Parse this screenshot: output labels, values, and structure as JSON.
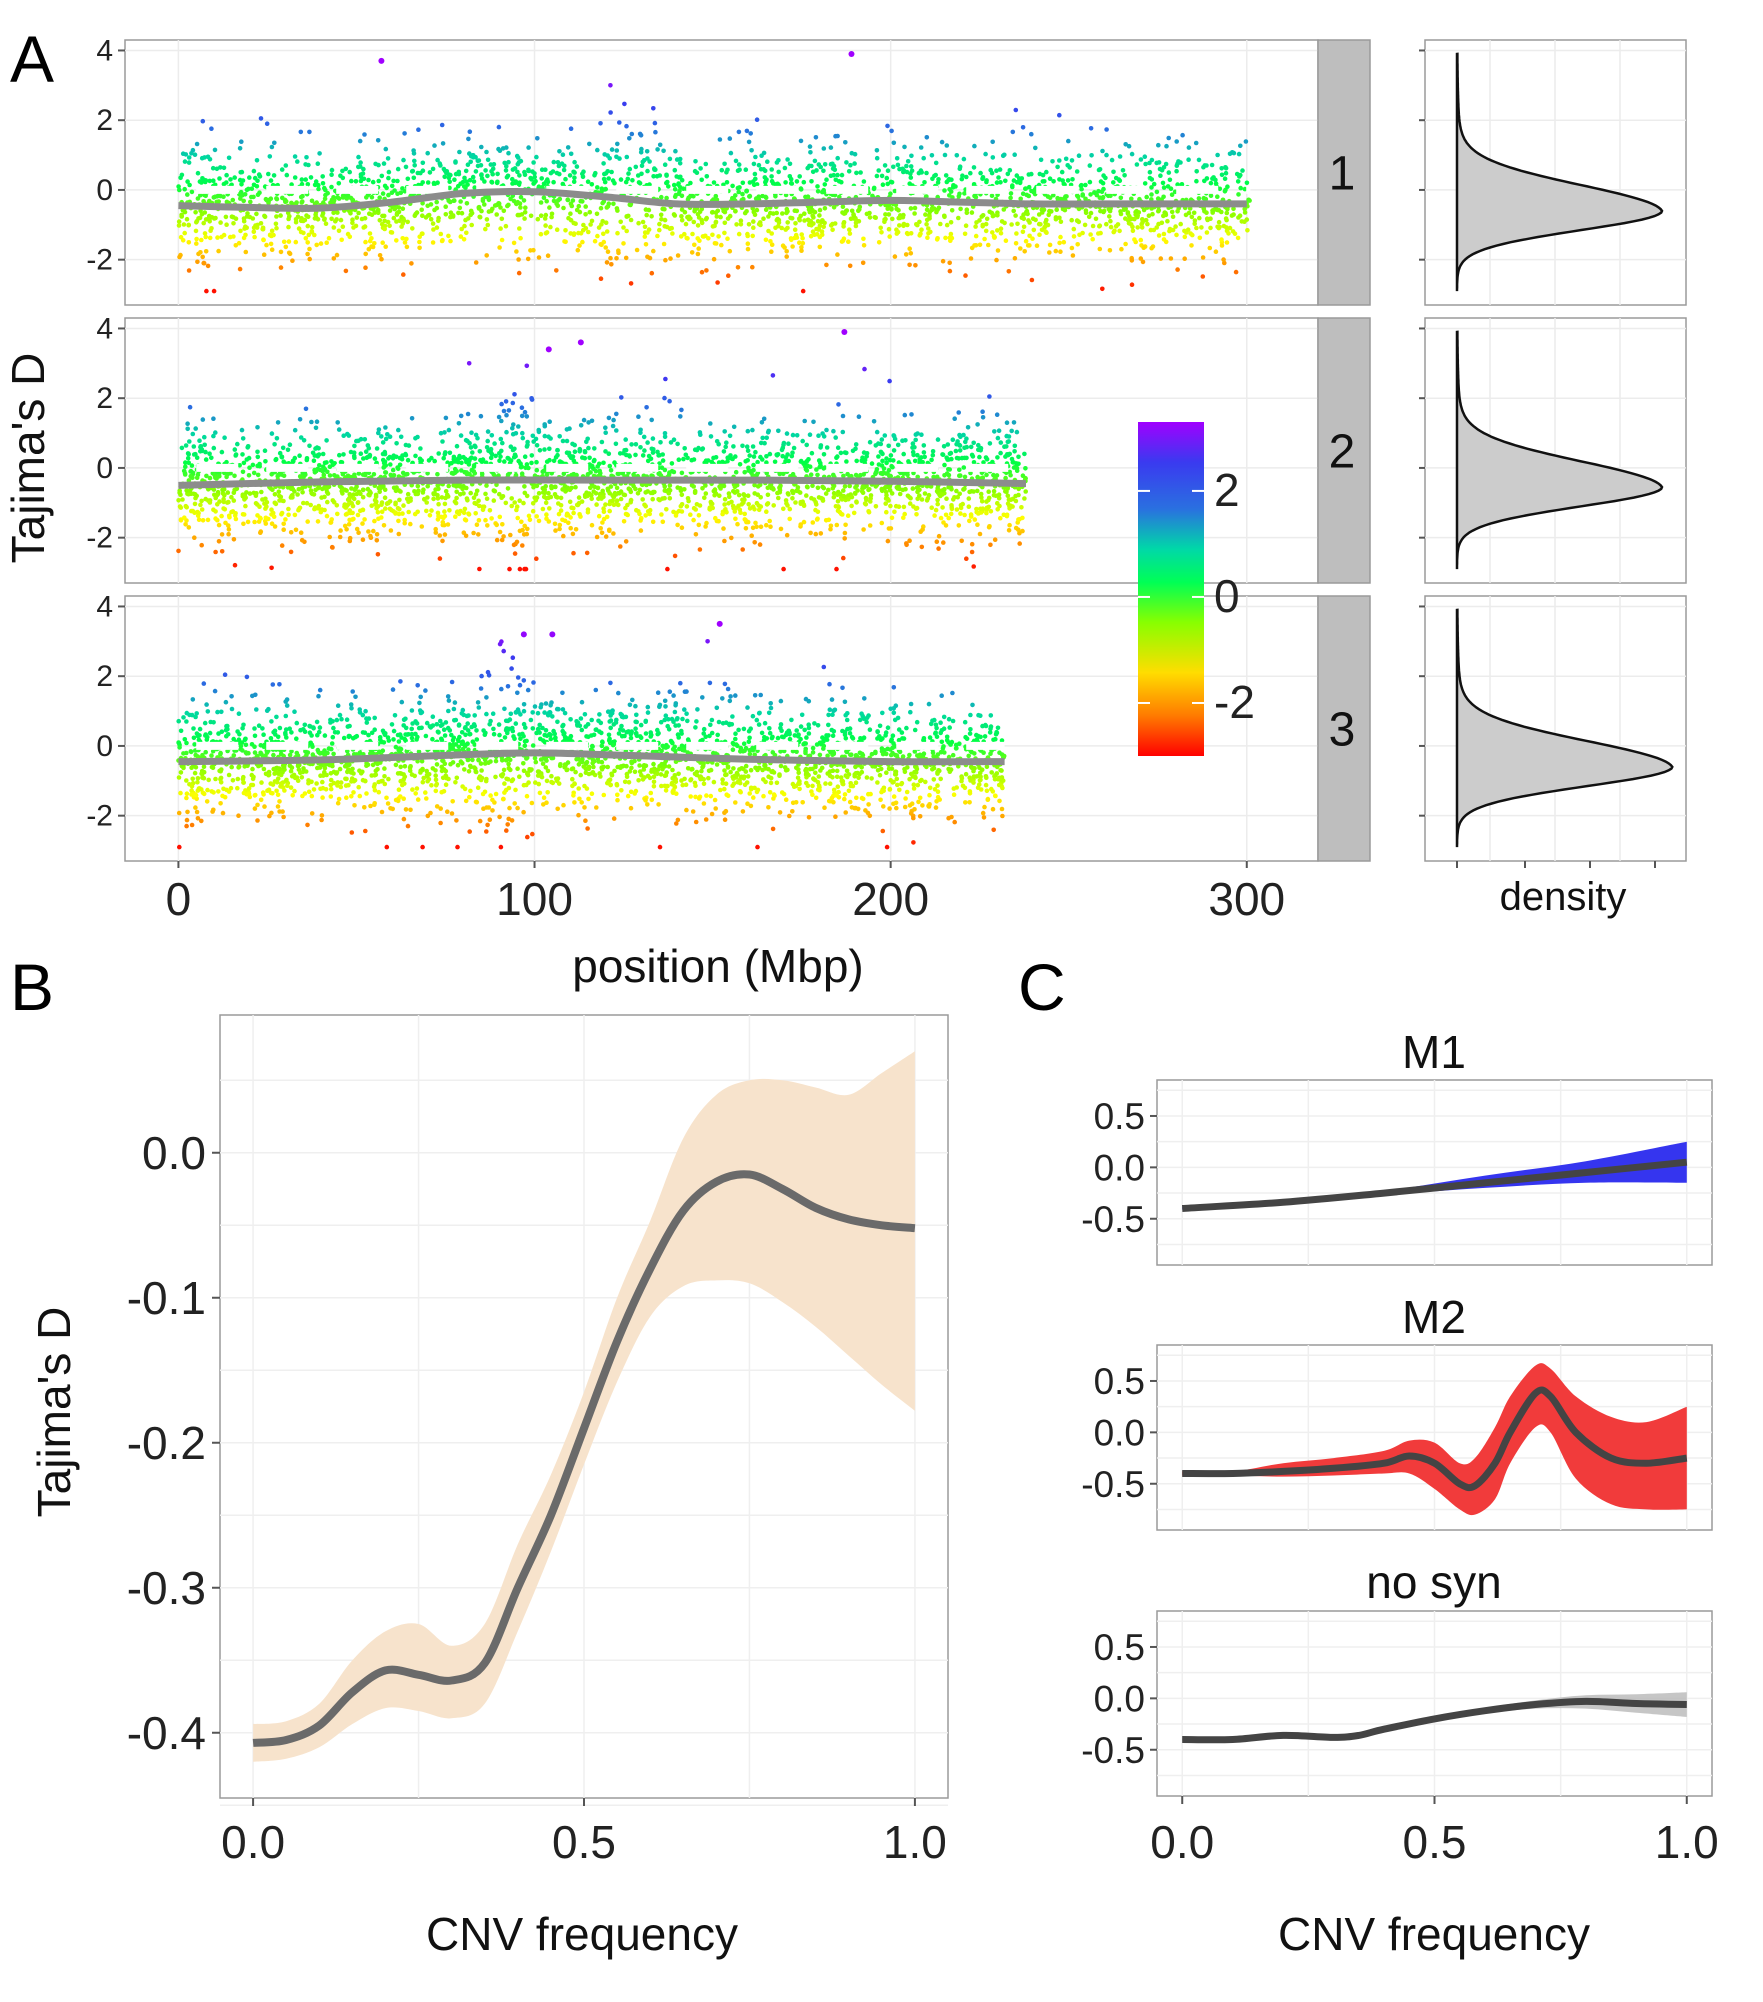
{
  "panel_labels": {
    "a": "A",
    "b": "B",
    "c": "C"
  },
  "colors": {
    "smooth_line": "#8c8c8c",
    "panel_b_line": "#6a6a6a",
    "panel_b_ribbon": "#f7e3cc",
    "m1_ribbon": "#2a2aee",
    "m2_ribbon": "#f03030",
    "nosyn_ribbon": "#b8b8b8",
    "dark_line": "#444444",
    "strip_bg": "#bebebe",
    "density_fill": "#cccccc"
  },
  "chart_data": [
    {
      "type": "scatter",
      "panel": "A",
      "ylabel": "Tajima's D",
      "xlabel": "position (Mbp)",
      "xlim": [
        -15,
        320
      ],
      "ylim": [
        -3.3,
        4.3
      ],
      "x_ticks": [
        "0",
        "100",
        "200",
        "300"
      ],
      "y_ticks": [
        "4",
        "2",
        "0",
        "-2"
      ],
      "color_scale": {
        "labels": [
          "2",
          "0",
          "-2"
        ],
        "range": [
          -3,
          3.3
        ],
        "gradient": [
          "#ff0000",
          "#ff8800",
          "#ffff00",
          "#88ff00",
          "#00ff44",
          "#00d8a0",
          "#2a6ee0",
          "#3a3af0",
          "#a000ff"
        ]
      },
      "reference_line": {
        "y": 0,
        "style": "dashed",
        "color": "#ffffff"
      },
      "facets": [
        {
          "strip": "1",
          "length_mbp": 301,
          "smooth": {
            "x": [
              0,
              20,
              40,
              60,
              80,
              100,
              120,
              140,
              160,
              180,
              200,
              220,
              240,
              260,
              280,
              300
            ],
            "y": [
              -0.45,
              -0.5,
              -0.52,
              -0.35,
              -0.1,
              -0.05,
              -0.2,
              -0.4,
              -0.4,
              -0.35,
              -0.3,
              -0.35,
              -0.4,
              -0.4,
              -0.4,
              -0.4
            ]
          },
          "outliers": [
            [
              57,
              3.7
            ],
            [
              189,
              3.9
            ]
          ],
          "dense_gap": [
            120,
            138
          ]
        },
        {
          "strip": "2",
          "length_mbp": 238,
          "smooth": {
            "x": [
              0,
              40,
              80,
              120,
              160,
              200,
              238
            ],
            "y": [
              -0.5,
              -0.4,
              -0.35,
              -0.35,
              -0.35,
              -0.38,
              -0.45
            ]
          },
          "outliers": [
            [
              187,
              3.9
            ],
            [
              104,
              3.4
            ],
            [
              113,
              3.6
            ]
          ],
          "dense_gap": [
            88,
            100
          ]
        },
        {
          "strip": "3",
          "length_mbp": 232,
          "smooth": {
            "x": [
              0,
              40,
              80,
              100,
              120,
              160,
              200,
              232
            ],
            "y": [
              -0.45,
              -0.4,
              -0.25,
              -0.2,
              -0.25,
              -0.38,
              -0.45,
              -0.45
            ]
          },
          "outliers": [
            [
              152,
              3.5
            ],
            [
              97,
              3.2
            ],
            [
              105,
              3.2
            ]
          ],
          "dense_gap": [
            85,
            100
          ]
        }
      ],
      "density": {
        "xlabel": "density",
        "facets": [
          {
            "peak_y": -0.6,
            "peak_density": 1.0
          },
          {
            "peak_y": -0.55,
            "peak_density": 1.0
          },
          {
            "peak_y": -0.6,
            "peak_density": 1.05
          }
        ]
      }
    },
    {
      "type": "line",
      "panel": "B",
      "xlabel": "CNV frequency",
      "ylabel": "Tajima's D",
      "xlim": [
        -0.05,
        1.05
      ],
      "ylim": [
        -0.445,
        0.095
      ],
      "x_ticks": [
        "0.0",
        "0.5",
        "1.0"
      ],
      "y_ticks": [
        "0.0",
        "-0.1",
        "-0.2",
        "-0.3",
        "-0.4"
      ],
      "series": [
        {
          "x": [
            0,
            0.05,
            0.1,
            0.15,
            0.2,
            0.25,
            0.3,
            0.35,
            0.4,
            0.45,
            0.5,
            0.55,
            0.6,
            0.65,
            0.7,
            0.75,
            0.8,
            0.85,
            0.9,
            0.95,
            1.0
          ],
          "y": [
            -0.407,
            -0.405,
            -0.395,
            -0.372,
            -0.357,
            -0.36,
            -0.364,
            -0.352,
            -0.3,
            -0.25,
            -0.19,
            -0.13,
            -0.08,
            -0.04,
            -0.02,
            -0.015,
            -0.025,
            -0.038,
            -0.046,
            -0.05,
            -0.052
          ],
          "lower": [
            -0.42,
            -0.418,
            -0.41,
            -0.394,
            -0.383,
            -0.385,
            -0.39,
            -0.38,
            -0.33,
            -0.275,
            -0.215,
            -0.158,
            -0.113,
            -0.092,
            -0.088,
            -0.09,
            -0.103,
            -0.12,
            -0.14,
            -0.16,
            -0.178
          ],
          "upper": [
            -0.394,
            -0.392,
            -0.38,
            -0.35,
            -0.33,
            -0.325,
            -0.34,
            -0.325,
            -0.27,
            -0.222,
            -0.165,
            -0.1,
            -0.047,
            0.01,
            0.04,
            0.05,
            0.05,
            0.045,
            0.04,
            0.055,
            0.07
          ]
        }
      ]
    },
    {
      "type": "line",
      "panel": "C",
      "xlabel": "CNV frequency",
      "xlim": [
        -0.05,
        1.05
      ],
      "x_ticks": [
        "0.0",
        "0.5",
        "1.0"
      ],
      "y_ticks": [
        "0.5",
        "0.0",
        "-0.5"
      ],
      "ylim": [
        -0.95,
        0.85
      ],
      "facets": [
        {
          "title": "M1",
          "x": [
            0,
            0.2,
            0.4,
            0.6,
            0.8,
            1.0
          ],
          "y": [
            -0.4,
            -0.34,
            -0.25,
            -0.15,
            -0.05,
            0.05
          ],
          "lower": [
            -0.41,
            -0.35,
            -0.27,
            -0.2,
            -0.15,
            -0.15
          ],
          "upper": [
            -0.39,
            -0.33,
            -0.23,
            -0.08,
            0.06,
            0.25
          ]
        },
        {
          "title": "M2",
          "x": [
            0,
            0.1,
            0.2,
            0.3,
            0.4,
            0.45,
            0.5,
            0.55,
            0.58,
            0.62,
            0.65,
            0.7,
            0.73,
            0.78,
            0.85,
            0.92,
            1.0
          ],
          "y": [
            -0.4,
            -0.4,
            -0.38,
            -0.35,
            -0.3,
            -0.23,
            -0.3,
            -0.5,
            -0.52,
            -0.3,
            0.0,
            0.38,
            0.35,
            0.0,
            -0.25,
            -0.3,
            -0.25
          ],
          "lower": [
            -0.42,
            -0.42,
            -0.43,
            -0.42,
            -0.4,
            -0.4,
            -0.55,
            -0.75,
            -0.8,
            -0.65,
            -0.3,
            0.05,
            0.0,
            -0.45,
            -0.7,
            -0.75,
            -0.75
          ],
          "upper": [
            -0.38,
            -0.38,
            -0.3,
            -0.25,
            -0.18,
            -0.08,
            -0.1,
            -0.3,
            -0.25,
            0.05,
            0.35,
            0.65,
            0.62,
            0.35,
            0.15,
            0.1,
            0.25
          ]
        },
        {
          "title": "no syn",
          "x": [
            0,
            0.1,
            0.2,
            0.3,
            0.35,
            0.4,
            0.5,
            0.6,
            0.7,
            0.8,
            0.9,
            1.0
          ],
          "y": [
            -0.4,
            -0.4,
            -0.36,
            -0.38,
            -0.36,
            -0.3,
            -0.2,
            -0.12,
            -0.06,
            -0.03,
            -0.05,
            -0.06
          ],
          "lower": [
            -0.41,
            -0.41,
            -0.38,
            -0.4,
            -0.38,
            -0.32,
            -0.23,
            -0.15,
            -0.1,
            -0.1,
            -0.14,
            -0.18
          ],
          "upper": [
            -0.39,
            -0.39,
            -0.34,
            -0.36,
            -0.34,
            -0.28,
            -0.17,
            -0.09,
            -0.02,
            0.03,
            0.04,
            0.06
          ]
        }
      ]
    }
  ]
}
